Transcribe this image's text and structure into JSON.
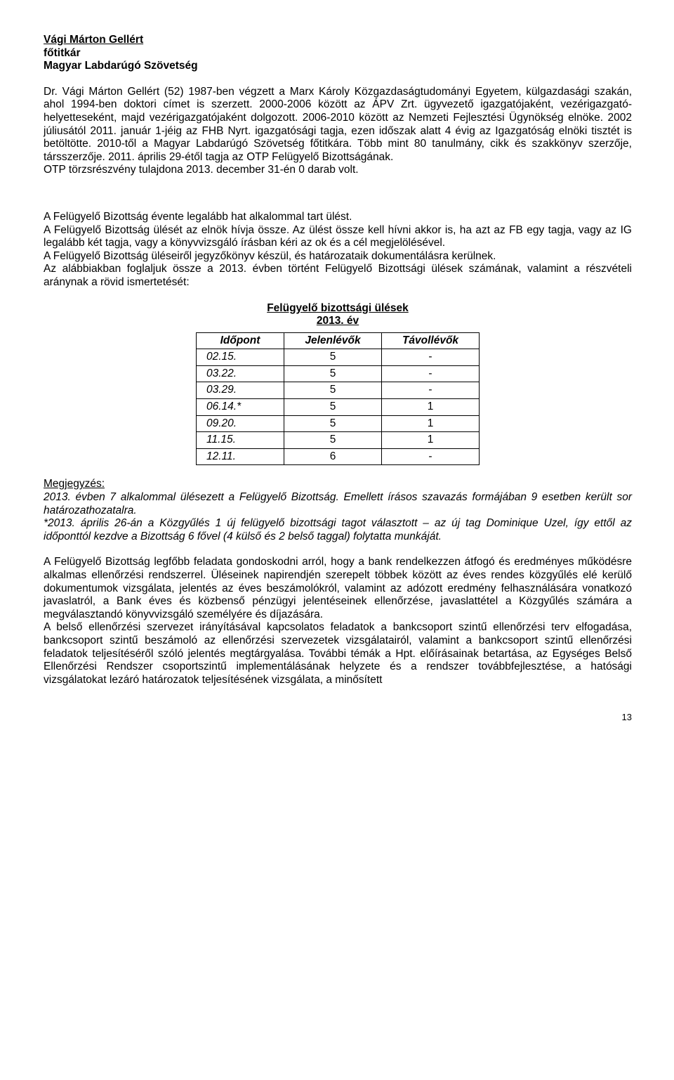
{
  "heading": {
    "name": "Vági Márton Gellért",
    "role": "főtitkár",
    "org": "Magyar Labdarúgó Szövetség"
  },
  "bio": {
    "text": "Dr. Vági Márton Gellért (52) 1987-ben végzett a Marx Károly Közgazdaságtudományi Egyetem, külgazdasági szakán, ahol 1994-ben doktori címet is szerzett. 2000-2006 között az ÁPV Zrt. ügyvezető igazgatójaként, vezérigazgató- helyetteseként, majd vezérigazgatójaként dolgozott. 2006-2010 között az Nemzeti Fejlesztési Ügynökség elnöke. 2002 júliusától 2011. január 1-jéig az FHB Nyrt. igazgatósági tagja, ezen időszak alatt 4 évig az Igazgatóság elnöki tisztét is betöltötte. 2010-től a Magyar Labdarúgó Szövetség főtitkára. Több mint 80 tanulmány, cikk és szakkönyv szerzője, társszerzője. 2011. április 29-étől tagja az OTP Felügyelő Bizottságának.",
    "shares": "OTP törzsrészvény tulajdona 2013. december 31-én 0 darab volt."
  },
  "committee": {
    "p1": "A Felügyelő Bizottság évente legalább hat alkalommal tart ülést.",
    "p2": "A Felügyelő Bizottság ülését az elnök hívja össze. Az ülést össze kell hívni akkor is, ha azt az FB egy tagja, vagy az IG legalább két tagja, vagy a könyvvizsgáló írásban kéri az ok és a cél megjelölésével.",
    "p3": "A Felügyelő Bizottság üléseiről jegyzőkönyv készül, és határozataik dokumentálásra kerülnek.",
    "p4": "Az alábbiakban foglaljuk össze a 2013. évben történt Felügyelő Bizottsági ülések számának, valamint a részvételi aránynak a rövid ismertetését:"
  },
  "table": {
    "title1": "Felügyelő bizottsági ülések",
    "title2": "2013. év",
    "columns": [
      "Időpont",
      "Jelenlévők",
      "Távollévők"
    ],
    "rows": [
      [
        "02.15.",
        "5",
        "-"
      ],
      [
        "03.22.",
        "5",
        "-"
      ],
      [
        "03.29.",
        "5",
        "-"
      ],
      [
        "06.14.*",
        "5",
        "1"
      ],
      [
        "09.20.",
        "5",
        "1"
      ],
      [
        "11.15.",
        "5",
        "1"
      ],
      [
        "12.11.",
        "6",
        "-"
      ]
    ]
  },
  "note": {
    "heading": "Megjegyzés:",
    "p1": "2013. évben 7 alkalommal ülésezett a Felügyelő Bizottság. Emellett írásos szavazás formájában 9 esetben került sor határozathozatalra.",
    "p2": "*2013. április 26-án a Közgyűlés 1 új felügyelő bizottsági tagot választott – az új tag Dominique Uzel, így ettől az időponttól kezdve a Bizottság 6 fővel (4 külső és 2 belső taggal) folytatta munkáját."
  },
  "tasks": {
    "p1": "A Felügyelő Bizottság legfőbb feladata gondoskodni arról, hogy a bank rendelkezzen átfogó és eredményes működésre alkalmas ellenőrzési rendszerrel. Üléseinek napirendjén szerepelt többek között az éves rendes közgyűlés elé kerülő dokumentumok vizsgálata, jelentés az éves beszámolókról, valamint az adózott eredmény felhasználására vonatkozó javaslatról, a Bank éves és közbenső pénzügyi jelentéseinek ellenőrzése, javaslattétel a Közgyűlés számára a megválasztandó könyvvizsgáló személyére és díjazására.",
    "p2": "A belső ellenőrzési szervezet irányításával kapcsolatos feladatok a bankcsoport szintű ellenőrzési terv elfogadása, bankcsoport szintű beszámoló az ellenőrzési szervezetek vizsgálatairól, valamint a bankcsoport szintű ellenőrzési feladatok teljesítéséről szóló jelentés megtárgyalása. További témák a Hpt. előírásainak betartása, az Egységes Belső Ellenőrzési Rendszer csoportszintű implementálásának helyzete és a rendszer továbbfejlesztése, a hatósági vizsgálatokat lezáró határozatok teljesítésének vizsgálata, a minősített"
  },
  "pageNumber": "13"
}
